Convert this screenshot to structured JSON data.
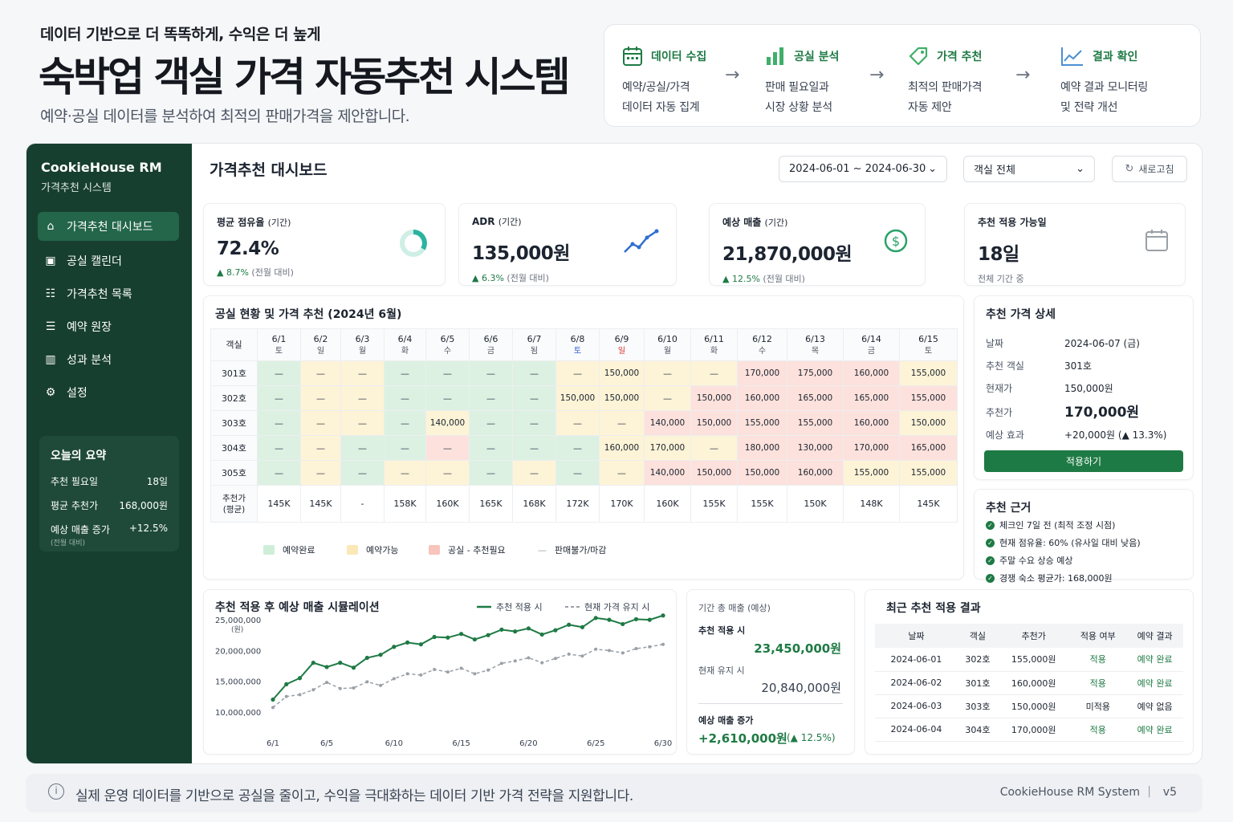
{
  "header": {
    "tagline": "데이터 기반으로 더 똑똑하게, 수익은 더 높게",
    "title": "숙박업 객실 가격 자동추천 시스템",
    "subtitle": "예약·공실 데이터를 분석하여 최적의 판매가격을 제안합니다."
  },
  "flow": [
    {
      "icon": "calendar-icon",
      "title": "데이터 수집",
      "desc1": "예약/공실/가격",
      "desc2": "데이터 자동 집계"
    },
    {
      "icon": "bar-chart-icon",
      "title": "공실 분석",
      "desc1": "판매 필요일과",
      "desc2": "시장 상황 분석"
    },
    {
      "icon": "tag-icon",
      "title": "가격 추천",
      "desc1": "최적의 판매가격",
      "desc2": "자동 제안"
    },
    {
      "icon": "trend-icon",
      "title": "결과 확인",
      "desc1": "예약 결과 모니터링",
      "desc2": "및 전략 개선"
    }
  ],
  "sidebar": {
    "brand": "CookieHouse RM",
    "brand_sub": "가격추천 시스템",
    "items": [
      {
        "icon": "home-icon",
        "label": "가격추천 대시보드",
        "active": true
      },
      {
        "icon": "calendar-icon",
        "label": "공실 캘린더"
      },
      {
        "icon": "list-icon",
        "label": "가격추천 목록"
      },
      {
        "icon": "ledger-icon",
        "label": "예약 원장"
      },
      {
        "icon": "bar-chart-icon",
        "label": "성과 분석"
      },
      {
        "icon": "gear-icon",
        "label": "설정"
      }
    ],
    "summary": {
      "title": "오늘의 요약",
      "rows": [
        {
          "label": "추천 필요일",
          "value": "18일"
        },
        {
          "label": "평균 추천가",
          "value": "168,000원"
        },
        {
          "label": "예상 매출 증가",
          "value": "+12.5%"
        }
      ],
      "note": "(전월 대비)"
    }
  },
  "toolbar": {
    "title": "가격추천 대시보드",
    "date_range": "2024-06-01 ~ 2024-06-30",
    "room_filter": "객실 전체",
    "refresh_label": "새로고침"
  },
  "kpis": [
    {
      "label": "평균 점유율",
      "period": "(기간)",
      "value": "72.4%",
      "change": "▲ 8.7%",
      "change_note": "(전월 대비)",
      "icon": "donut-icon"
    },
    {
      "label": "ADR",
      "period": "(기간)",
      "value": "135,000원",
      "change": "▲ 6.3%",
      "change_note": "(전월 대비)",
      "icon": "trend-icon"
    },
    {
      "label": "예상 매출",
      "period": "(기간)",
      "value": "21,870,000원",
      "change": "▲ 12.5%",
      "change_note": "(전월 대비)",
      "icon": "dollar-icon"
    },
    {
      "label": "추천 적용 가능일",
      "period": "",
      "value": "18일",
      "change": "",
      "change_note": "전체 기간 중",
      "icon": "calendar-icon"
    }
  ],
  "occupancy": {
    "title": "공실 현황 및 가격 추천 (2024년 6월)",
    "room_header": "객실",
    "dates": [
      {
        "d": "6/1",
        "w": "토"
      },
      {
        "d": "6/2",
        "w": "일"
      },
      {
        "d": "6/3",
        "w": "월"
      },
      {
        "d": "6/4",
        "w": "화"
      },
      {
        "d": "6/5",
        "w": "수"
      },
      {
        "d": "6/6",
        "w": "금"
      },
      {
        "d": "6/7",
        "w": "됨"
      },
      {
        "d": "6/8",
        "w": "토"
      },
      {
        "d": "6/9",
        "w": "일"
      },
      {
        "d": "6/10",
        "w": "월"
      },
      {
        "d": "6/11",
        "w": "화"
      },
      {
        "d": "6/12",
        "w": "수"
      },
      {
        "d": "6/13",
        "w": "목"
      },
      {
        "d": "6/14",
        "w": "금"
      },
      {
        "d": "6/15",
        "w": "토"
      }
    ],
    "rows": [
      {
        "room": "301호",
        "cells": [
          [
            "—",
            "b"
          ],
          [
            "—",
            "a"
          ],
          [
            "—",
            "a"
          ],
          [
            "—",
            "b"
          ],
          [
            "—",
            "b"
          ],
          [
            "—",
            "b"
          ],
          [
            "—",
            "b"
          ],
          [
            "—",
            "a"
          ],
          [
            "150,000",
            "a"
          ],
          [
            "—",
            "a"
          ],
          [
            "—",
            "a"
          ],
          [
            "170,000",
            "v"
          ],
          [
            "175,000",
            "v"
          ],
          [
            "160,000",
            "v"
          ],
          [
            "155,000",
            "a"
          ]
        ]
      },
      {
        "room": "302호",
        "cells": [
          [
            "—",
            "b"
          ],
          [
            "—",
            "a"
          ],
          [
            "—",
            "a"
          ],
          [
            "—",
            "b"
          ],
          [
            "—",
            "b"
          ],
          [
            "—",
            "b"
          ],
          [
            "—",
            "b"
          ],
          [
            "150,000",
            "a"
          ],
          [
            "150,000",
            "a"
          ],
          [
            "—",
            "a"
          ],
          [
            "150,000",
            "v"
          ],
          [
            "160,000",
            "v"
          ],
          [
            "165,000",
            "v"
          ],
          [
            "165,000",
            "v"
          ],
          [
            "155,000",
            "v"
          ]
        ]
      },
      {
        "room": "303호",
        "cells": [
          [
            "—",
            "b"
          ],
          [
            "—",
            "a"
          ],
          [
            "—",
            "a"
          ],
          [
            "—",
            "b"
          ],
          [
            "140,000",
            "a"
          ],
          [
            "—",
            "b"
          ],
          [
            "—",
            "b"
          ],
          [
            "—",
            "a"
          ],
          [
            "—",
            "a"
          ],
          [
            "140,000",
            "v"
          ],
          [
            "150,000",
            "v"
          ],
          [
            "155,000",
            "v"
          ],
          [
            "155,000",
            "v"
          ],
          [
            "160,000",
            "v"
          ],
          [
            "150,000",
            "a"
          ]
        ]
      },
      {
        "room": "304호",
        "cells": [
          [
            "—",
            "b"
          ],
          [
            "—",
            "a"
          ],
          [
            "—",
            "b"
          ],
          [
            "—",
            "b"
          ],
          [
            "—",
            "v"
          ],
          [
            "—",
            "b"
          ],
          [
            "—",
            "b"
          ],
          [
            "—",
            "b"
          ],
          [
            "160,000",
            "a"
          ],
          [
            "170,000",
            "a"
          ],
          [
            "—",
            "a"
          ],
          [
            "180,000",
            "v"
          ],
          [
            "130,000",
            "v"
          ],
          [
            "170,000",
            "v"
          ],
          [
            "165,000",
            "v"
          ]
        ]
      },
      {
        "room": "305호",
        "cells": [
          [
            "—",
            "b"
          ],
          [
            "—",
            "a"
          ],
          [
            "—",
            "b"
          ],
          [
            "—",
            "a"
          ],
          [
            "—",
            "a"
          ],
          [
            "—",
            "b"
          ],
          [
            "—",
            "a"
          ],
          [
            "—",
            "b"
          ],
          [
            "—",
            "a"
          ],
          [
            "140,000",
            "v"
          ],
          [
            "150,000",
            "v"
          ],
          [
            "150,000",
            "v"
          ],
          [
            "160,000",
            "v"
          ],
          [
            "155,000",
            "a"
          ],
          [
            "155,000",
            "a"
          ]
        ]
      }
    ],
    "avg_label": "추천가\n(평균)",
    "avg": [
      "145K",
      "145K",
      "-",
      "158K",
      "160K",
      "165K",
      "168K",
      "172K",
      "170K",
      "160K",
      "155K",
      "155K",
      "150K",
      "148K",
      "145K"
    ],
    "legend": [
      {
        "label": "예약완료",
        "color": "#cfeed8"
      },
      {
        "label": "예약가능",
        "color": "#fbe8b8"
      },
      {
        "label": "공실 - 추천필요",
        "color": "#f8c4bb"
      },
      {
        "label": "판매불가/마감",
        "color": ""
      }
    ]
  },
  "detail": {
    "title": "추천 가격 상세",
    "rows": [
      {
        "label": "날짜",
        "value": "2024-06-07 (금)"
      },
      {
        "label": "추천 객실",
        "value": "301호"
      },
      {
        "label": "현재가",
        "value": "150,000원"
      },
      {
        "label": "추천가",
        "value": "170,000원"
      },
      {
        "label": "예상 효과",
        "value": "+20,000원 (▲ 13.3%)"
      }
    ],
    "apply_label": "적용하기"
  },
  "reasons": {
    "title": "추천 근거",
    "items": [
      "체크인 7일 전 (최적 조정 시점)",
      "현재 점유율: 60% (유사일 대비 낮음)",
      "주말 수요 상승 예상",
      "경쟁 숙소 평균가: 168,000원"
    ]
  },
  "chart_data": {
    "type": "line",
    "title": "추천 적용 후 예상 매출 시뮬레이션",
    "ylabel": "(원)",
    "x": [
      "6/1",
      "6/2",
      "6/3",
      "6/4",
      "6/5",
      "6/6",
      "6/7",
      "6/8",
      "6/9",
      "6/10",
      "6/11",
      "6/12",
      "6/13",
      "6/14",
      "6/15",
      "6/16",
      "6/17",
      "6/18",
      "6/19",
      "6/20",
      "6/21",
      "6/22",
      "6/23",
      "6/24",
      "6/25",
      "6/26",
      "6/27",
      "6/28",
      "6/29",
      "6/30"
    ],
    "xticks": [
      "6/1",
      "6/5",
      "6/10",
      "6/15",
      "6/20",
      "6/25",
      "6/30"
    ],
    "yticks": [
      "25,000,000",
      "20,000,000",
      "15,000,000",
      "10,000,000"
    ],
    "ylim": [
      5000000,
      27500000
    ],
    "series": [
      {
        "name": "추천 적용 시",
        "style": "solid",
        "color": "#1e7a44",
        "values": [
          12000000,
          14500000,
          15500000,
          18000000,
          17300000,
          18000000,
          17200000,
          18800000,
          19300000,
          20600000,
          21300000,
          21000000,
          22200000,
          22100000,
          22700000,
          21800000,
          22500000,
          23400000,
          23100000,
          23600000,
          22600000,
          23300000,
          24200000,
          23800000,
          25300000,
          25000000,
          24300000,
          25100000,
          25000000,
          25700000
        ]
      },
      {
        "name": "현재 가격 유지 시",
        "style": "dashed",
        "color": "#9aa0a6",
        "values": [
          10700000,
          12500000,
          12800000,
          13600000,
          14800000,
          13800000,
          13900000,
          14900000,
          14300000,
          15400000,
          16200000,
          16000000,
          16900000,
          16500000,
          17100000,
          16200000,
          16800000,
          17900000,
          18300000,
          18800000,
          18000000,
          18700000,
          19400000,
          19100000,
          20200000,
          20000000,
          19600000,
          20300000,
          20600000,
          21000000
        ]
      }
    ],
    "grid": false,
    "legend": "top-right"
  },
  "totals": {
    "title": "기간 총 매출 (예상)",
    "applied_label": "추천 적용 시",
    "applied_value": "23,450,000원",
    "current_label": "현재 유지 시",
    "current_value": "20,840,000원",
    "increase_label": "예상 매출 증가",
    "increase_value": "+2,610,000원",
    "increase_pct": "(▲ 12.5%)"
  },
  "recent": {
    "title": "최근 추천 적용 결과",
    "headers": [
      "날짜",
      "객실",
      "추천가",
      "적용 여부",
      "예약 결과"
    ],
    "rows": [
      [
        "2024-06-01",
        "302호",
        "155,000원",
        "적용",
        "예약 완료"
      ],
      [
        "2024-06-02",
        "301호",
        "160,000원",
        "적용",
        "예약 완료"
      ],
      [
        "2024-06-03",
        "303호",
        "150,000원",
        "미적용",
        "예약 없음"
      ],
      [
        "2024-06-04",
        "304호",
        "170,000원",
        "적용",
        "예약 완료"
      ]
    ]
  },
  "footer": {
    "message": "실제 운영 데이터를 기반으로 공실을 줄이고, 수익을 극대화하는 데이터 기반 가격 전략을 지원합니다.",
    "product": "CookieHouse RM System",
    "version": "v5"
  },
  "colors": {
    "accent": "#1e7a44",
    "sidebar": "#173f2f",
    "booked": "#dcf1e2",
    "available": "#fdf3d6",
    "vacant": "#fde1dc"
  }
}
